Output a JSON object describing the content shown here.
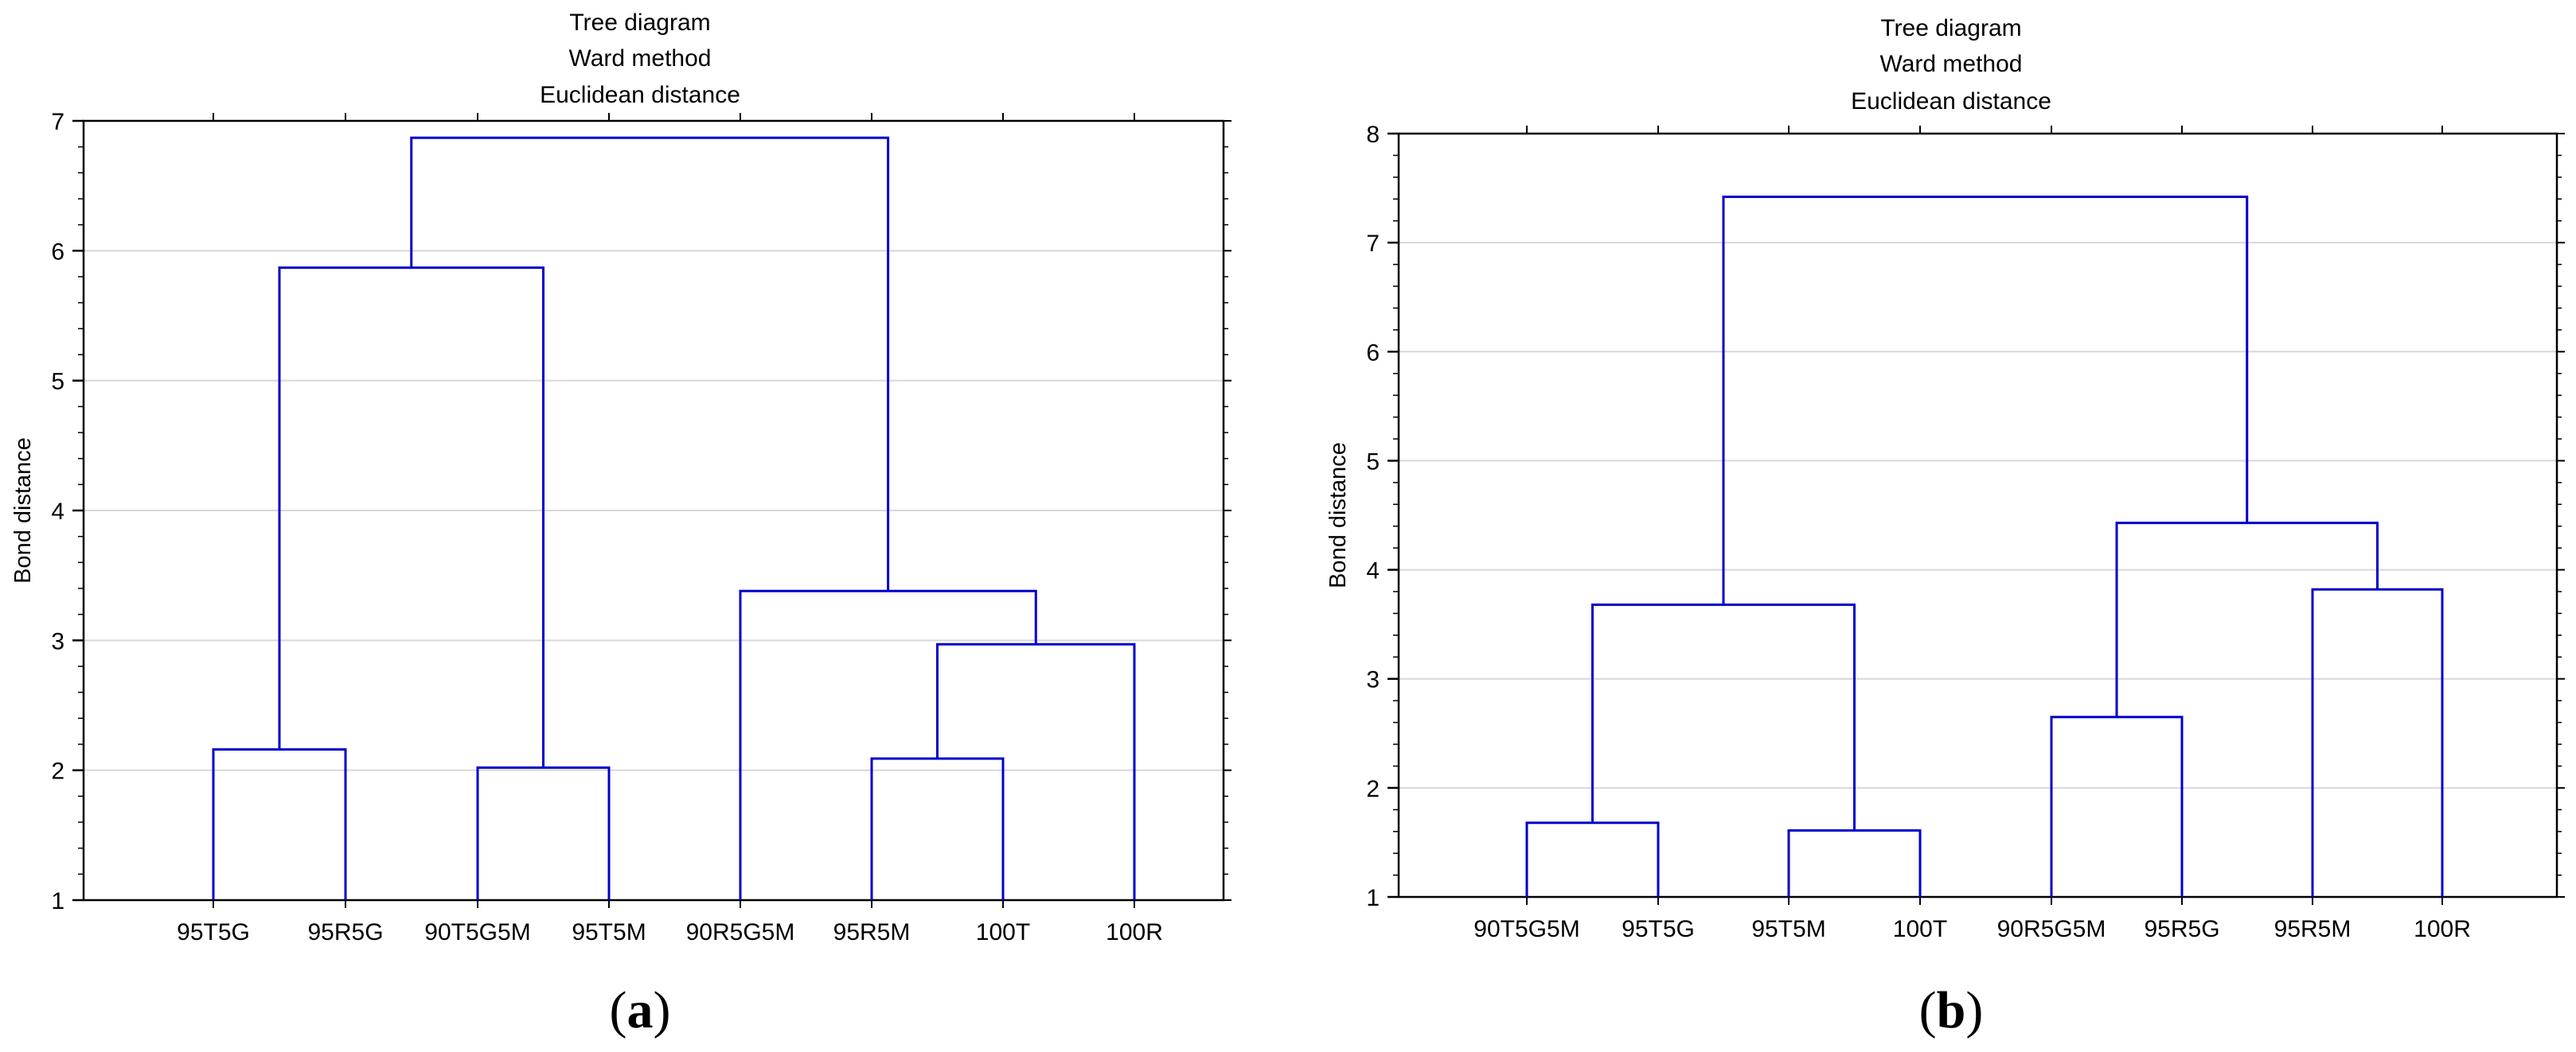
{
  "chart_data": [
    {
      "type": "dendrogram",
      "panel_label": {
        "open": "(",
        "letter": "a",
        "close": ")"
      },
      "title_lines": [
        "Tree diagram",
        "Ward method",
        "Euclidean distance"
      ],
      "xlabel": "",
      "ylabel": "Bond distance",
      "ylim": [
        1,
        7
      ],
      "yticks": [
        1,
        2,
        3,
        4,
        5,
        6,
        7
      ],
      "grid": true,
      "line_color": "#0000cc",
      "leaves": [
        "95T5G",
        "95R5G",
        "90T5G5M",
        "95T5M",
        "90R5G5M",
        "95R5M",
        "100T",
        "100R"
      ],
      "merges": [
        {
          "left": "L0",
          "right": "L1",
          "height": 2.16
        },
        {
          "left": "L2",
          "right": "L3",
          "height": 2.02
        },
        {
          "left": "L5",
          "right": "L6",
          "height": 2.09
        },
        {
          "left": "N2",
          "right": "L7",
          "height": 2.97
        },
        {
          "left": "L4",
          "right": "N3",
          "height": 3.38
        },
        {
          "left": "N0",
          "right": "N1",
          "height": 5.87
        },
        {
          "left": "N5",
          "right": "N4",
          "height": 6.87
        }
      ]
    },
    {
      "type": "dendrogram",
      "panel_label": {
        "open": "(",
        "letter": "b",
        "close": ")"
      },
      "title_lines": [
        "Tree diagram",
        "Ward method",
        "Euclidean distance"
      ],
      "xlabel": "",
      "ylabel": "Bond distance",
      "ylim": [
        1,
        8
      ],
      "yticks": [
        1,
        2,
        3,
        4,
        5,
        6,
        7,
        8
      ],
      "grid": true,
      "line_color": "#0000cc",
      "leaves": [
        "90T5G5M",
        "95T5G",
        "95T5M",
        "100T",
        "90R5G5M",
        "95R5G",
        "95R5M",
        "100R"
      ],
      "merges": [
        {
          "left": "L0",
          "right": "L1",
          "height": 1.68
        },
        {
          "left": "L2",
          "right": "L3",
          "height": 1.61
        },
        {
          "left": "L4",
          "right": "L5",
          "height": 2.65
        },
        {
          "left": "L6",
          "right": "L7",
          "height": 3.82
        },
        {
          "left": "N0",
          "right": "N1",
          "height": 3.68
        },
        {
          "left": "N2",
          "right": "N3",
          "height": 4.43
        },
        {
          "left": "N4",
          "right": "N5",
          "height": 7.42
        }
      ]
    }
  ]
}
